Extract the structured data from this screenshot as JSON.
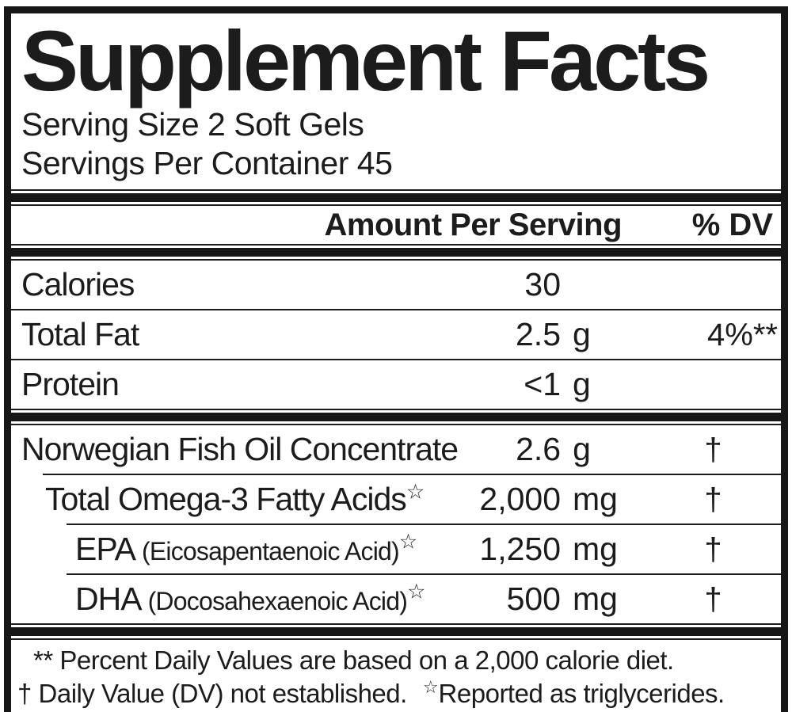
{
  "colors": {
    "ink": "#1c1c1c",
    "background": "#ffffff"
  },
  "label": {
    "title": "Supplement Facts",
    "serving_size": "Serving Size 2 Soft Gels",
    "servings_per_container": "Servings Per Container 45",
    "header": {
      "amount_per_serving": "Amount Per Serving",
      "percent_dv": "% DV"
    },
    "macro_rows": [
      {
        "name": "Calories",
        "amount": "30",
        "unit": "",
        "dv": ""
      },
      {
        "name": "Total Fat",
        "amount": "2.5",
        "unit": "g",
        "dv": "4%**"
      },
      {
        "name": "Protein",
        "amount": "<1",
        "unit": "g",
        "dv": ""
      }
    ],
    "ingredient_rows": [
      {
        "name": "Norwegian Fish Oil Concentrate",
        "paren": "",
        "star": "",
        "amount": "2.6",
        "unit": "g",
        "dv": "†"
      },
      {
        "name": "Total Omega-3 Fatty Acids",
        "paren": "",
        "star": "☆",
        "amount": "2,000",
        "unit": "mg",
        "dv": "†"
      },
      {
        "name": "EPA",
        "paren": "(Eicosapentaenoic Acid)",
        "star": "☆",
        "amount": "1,250",
        "unit": "mg",
        "dv": "†"
      },
      {
        "name": "DHA",
        "paren": "(Docosahexaenoic Acid)",
        "star": "☆",
        "amount": "500",
        "unit": "mg",
        "dv": "†"
      }
    ],
    "footnotes": {
      "line1": "** Percent Daily Values are based on a 2,000 calorie diet.",
      "line2_dagger_note": "† Daily Value (DV) not established.",
      "line2_star": "☆",
      "line2_reported": "Reported as triglycerides."
    }
  }
}
